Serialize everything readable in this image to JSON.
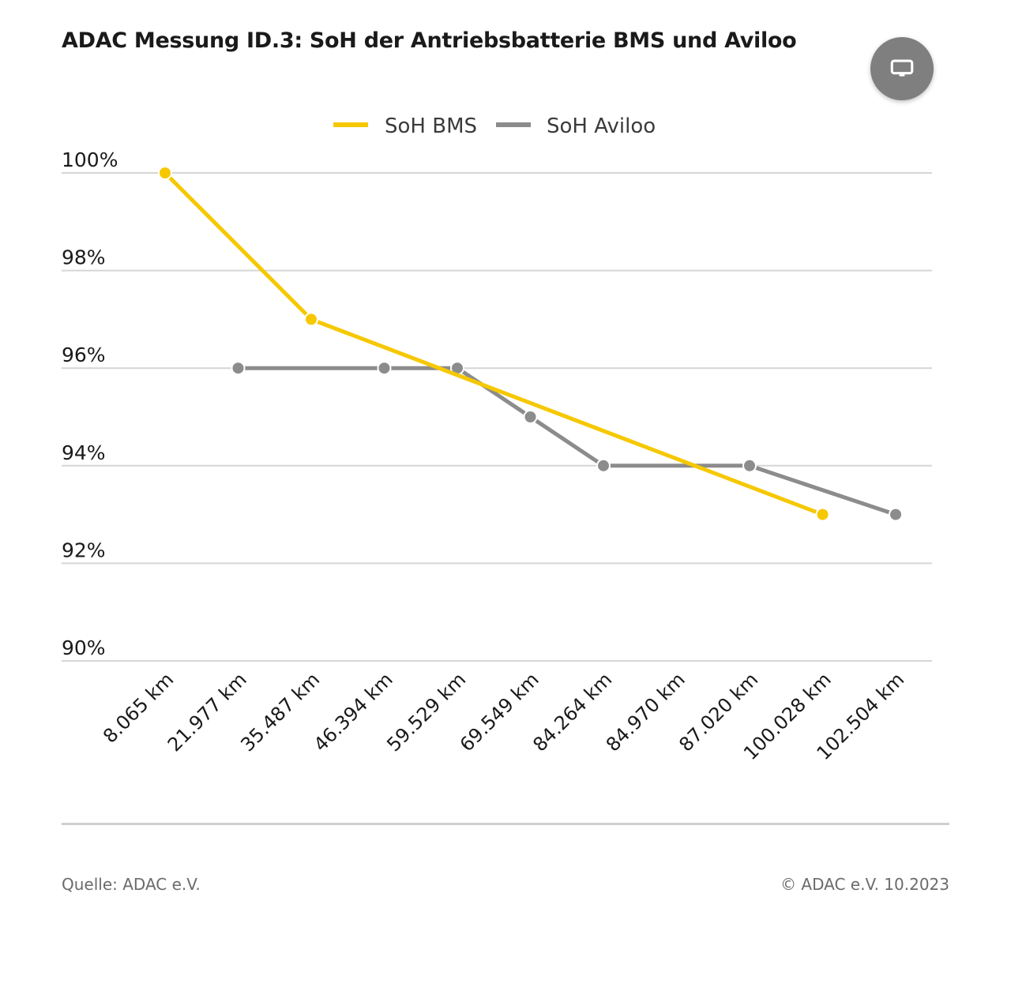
{
  "title": "ADAC Messung ID.3: SoH der Antriebsbatterie BMS und Aviloo",
  "fullscreen_button": {
    "icon": "monitor-icon"
  },
  "footer": {
    "source": "Quelle: ADAC e.V.",
    "copyright": "© ADAC e.V. 10.2023"
  },
  "chart_data": {
    "type": "line",
    "title": "ADAC Messung ID.3: SoH der Antriebsbatterie BMS und Aviloo",
    "xlabel": "",
    "ylabel": "",
    "categories": [
      "8.065 km",
      "21.977 km",
      "35.487 km",
      "46.394 km",
      "59.529 km",
      "69.549 km",
      "84.264 km",
      "84.970 km",
      "87.020 km",
      "100.028 km",
      "102.504 km"
    ],
    "ylim": [
      90,
      100
    ],
    "yticks": [
      {
        "value": 100,
        "label": "100%"
      },
      {
        "value": 98,
        "label": "98%"
      },
      {
        "value": 96,
        "label": "96%"
      },
      {
        "value": 94,
        "label": "94%"
      },
      {
        "value": 92,
        "label": "92%"
      },
      {
        "value": 90,
        "label": "90%"
      }
    ],
    "grid": true,
    "legend_position": "top-center",
    "series": [
      {
        "name": "SoH BMS",
        "color": "#f6c800",
        "values": [
          100,
          null,
          97,
          null,
          null,
          null,
          null,
          null,
          null,
          93,
          null
        ]
      },
      {
        "name": "SoH Aviloo",
        "color": "#8c8c8c",
        "values": [
          null,
          96,
          null,
          96,
          96,
          95,
          94,
          null,
          94,
          null,
          93
        ]
      }
    ]
  }
}
